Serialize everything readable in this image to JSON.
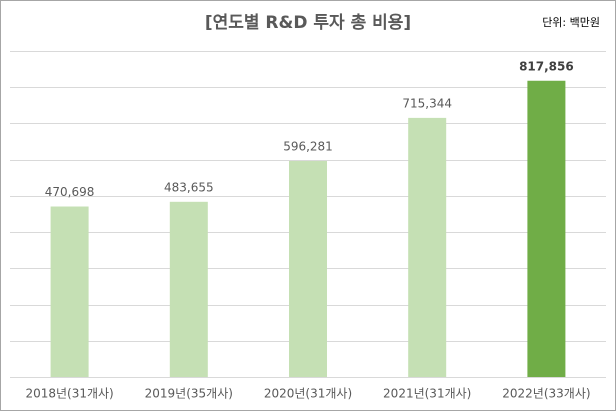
{
  "chart_data": {
    "type": "bar",
    "title": "[연도별 R&D 투자 총 비용]",
    "unit_note": "단위: 백만원",
    "categories": [
      "2018년(31개사)",
      "2019년(35개사)",
      "2020년(31개사)",
      "2021년(31개사)",
      "2022년(33개사)"
    ],
    "values": [
      470698,
      483655,
      596281,
      715344,
      817856
    ],
    "value_labels": [
      "470,698",
      "483,655",
      "596,281",
      "715,344",
      "817,856"
    ],
    "colors": [
      "#c5e0b4",
      "#c5e0b4",
      "#c5e0b4",
      "#c5e0b4",
      "#70ad47"
    ],
    "bold_labels": [
      false,
      false,
      false,
      false,
      true
    ],
    "ylim": [
      0,
      900000
    ],
    "yticks": [
      0,
      100000,
      200000,
      300000,
      400000,
      500000,
      600000,
      700000,
      800000,
      900000
    ],
    "grid": true
  }
}
